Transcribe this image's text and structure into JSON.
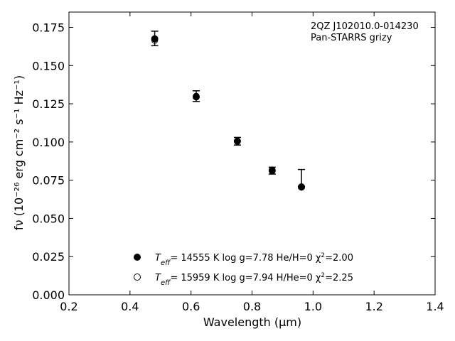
{
  "chart_data": {
    "type": "scatter",
    "xlabel": "Wavelength (μm)",
    "ylabel": "fν (10⁻²⁶ erg cm⁻² s⁻¹ Hz⁻¹)",
    "xlim": [
      0.2,
      1.4
    ],
    "ylim": [
      0.0,
      0.185
    ],
    "xticks": [
      0.2,
      0.4,
      0.6,
      0.8,
      1.0,
      1.2,
      1.4
    ],
    "xtick_labels": [
      "0.2",
      "0.4",
      "0.6",
      "0.8",
      "1.0",
      "1.2",
      "1.4"
    ],
    "yticks": [
      0.0,
      0.025,
      0.05,
      0.075,
      0.1,
      0.125,
      0.15,
      0.175
    ],
    "ytick_labels": [
      "0.000",
      "0.025",
      "0.050",
      "0.075",
      "0.100",
      "0.125",
      "0.150",
      "0.175"
    ],
    "grid": false,
    "annotation": [
      "2QZ J102010.0-014230",
      "Pan-STARRS grizy"
    ],
    "observed": {
      "x": [
        0.481,
        0.617,
        0.752,
        0.866,
        0.962
      ],
      "y": [
        0.1675,
        0.13,
        0.1005,
        0.0815,
        0.0715
      ],
      "yerr_low": [
        0.0045,
        0.0035,
        0.0025,
        0.0025,
        0.0005
      ],
      "yerr_high": [
        0.005,
        0.0035,
        0.0025,
        0.002,
        0.0105
      ]
    },
    "models": [
      {
        "marker": "filled",
        "label_teff": "T",
        "label_sub": "eff",
        "label_rest": "= 14555 K  log g=7.78  He/H=0  χ",
        "label_sup": "2",
        "label_end": "=2.00",
        "x": [
          0.481,
          0.617,
          0.752,
          0.866,
          0.962
        ],
        "y": [
          0.1675,
          0.1295,
          0.1005,
          0.0812,
          0.0705
        ]
      },
      {
        "marker": "open",
        "label_teff": "T",
        "label_sub": "eff",
        "label_rest": "= 15959 K  log g=7.94  H/He=0  χ",
        "label_sup": "2",
        "label_end": "=2.25",
        "x": [
          0.481,
          0.617,
          0.752,
          0.866,
          0.962
        ],
        "y": [
          0.1665,
          0.13,
          0.1007,
          0.0818,
          0.0708
        ]
      }
    ]
  }
}
